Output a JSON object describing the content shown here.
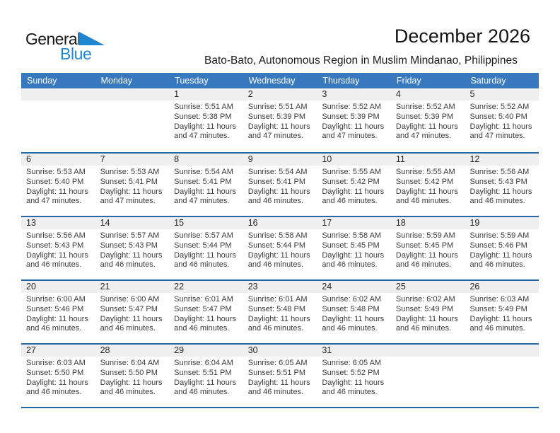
{
  "logo": {
    "part1": "General",
    "part2": "Blue",
    "triangle_color": "#1F86D1"
  },
  "header": {
    "title": "December 2026",
    "subtitle": "Bato-Bato, Autonomous Region in Muslim Mindanao, Philippines"
  },
  "colors": {
    "weekday_header_bg": "#3878BE",
    "week_separator": "#2667A8",
    "day_band_bg": "#EFEFEF"
  },
  "weekdays": [
    "Sunday",
    "Monday",
    "Tuesday",
    "Wednesday",
    "Thursday",
    "Friday",
    "Saturday"
  ],
  "weeks": [
    [
      {
        "day": "",
        "lines": []
      },
      {
        "day": "",
        "lines": []
      },
      {
        "day": "1",
        "lines": [
          "Sunrise: 5:51 AM",
          "Sunset: 5:38 PM",
          "Daylight: 11 hours",
          "and 47 minutes."
        ]
      },
      {
        "day": "2",
        "lines": [
          "Sunrise: 5:51 AM",
          "Sunset: 5:39 PM",
          "Daylight: 11 hours",
          "and 47 minutes."
        ]
      },
      {
        "day": "3",
        "lines": [
          "Sunrise: 5:52 AM",
          "Sunset: 5:39 PM",
          "Daylight: 11 hours",
          "and 47 minutes."
        ]
      },
      {
        "day": "4",
        "lines": [
          "Sunrise: 5:52 AM",
          "Sunset: 5:39 PM",
          "Daylight: 11 hours",
          "and 47 minutes."
        ]
      },
      {
        "day": "5",
        "lines": [
          "Sunrise: 5:52 AM",
          "Sunset: 5:40 PM",
          "Daylight: 11 hours",
          "and 47 minutes."
        ]
      }
    ],
    [
      {
        "day": "6",
        "lines": [
          "Sunrise: 5:53 AM",
          "Sunset: 5:40 PM",
          "Daylight: 11 hours",
          "and 47 minutes."
        ]
      },
      {
        "day": "7",
        "lines": [
          "Sunrise: 5:53 AM",
          "Sunset: 5:41 PM",
          "Daylight: 11 hours",
          "and 47 minutes."
        ]
      },
      {
        "day": "8",
        "lines": [
          "Sunrise: 5:54 AM",
          "Sunset: 5:41 PM",
          "Daylight: 11 hours",
          "and 47 minutes."
        ]
      },
      {
        "day": "9",
        "lines": [
          "Sunrise: 5:54 AM",
          "Sunset: 5:41 PM",
          "Daylight: 11 hours",
          "and 46 minutes."
        ]
      },
      {
        "day": "10",
        "lines": [
          "Sunrise: 5:55 AM",
          "Sunset: 5:42 PM",
          "Daylight: 11 hours",
          "and 46 minutes."
        ]
      },
      {
        "day": "11",
        "lines": [
          "Sunrise: 5:55 AM",
          "Sunset: 5:42 PM",
          "Daylight: 11 hours",
          "and 46 minutes."
        ]
      },
      {
        "day": "12",
        "lines": [
          "Sunrise: 5:56 AM",
          "Sunset: 5:43 PM",
          "Daylight: 11 hours",
          "and 46 minutes."
        ]
      }
    ],
    [
      {
        "day": "13",
        "lines": [
          "Sunrise: 5:56 AM",
          "Sunset: 5:43 PM",
          "Daylight: 11 hours",
          "and 46 minutes."
        ]
      },
      {
        "day": "14",
        "lines": [
          "Sunrise: 5:57 AM",
          "Sunset: 5:43 PM",
          "Daylight: 11 hours",
          "and 46 minutes."
        ]
      },
      {
        "day": "15",
        "lines": [
          "Sunrise: 5:57 AM",
          "Sunset: 5:44 PM",
          "Daylight: 11 hours",
          "and 46 minutes."
        ]
      },
      {
        "day": "16",
        "lines": [
          "Sunrise: 5:58 AM",
          "Sunset: 5:44 PM",
          "Daylight: 11 hours",
          "and 46 minutes."
        ]
      },
      {
        "day": "17",
        "lines": [
          "Sunrise: 5:58 AM",
          "Sunset: 5:45 PM",
          "Daylight: 11 hours",
          "and 46 minutes."
        ]
      },
      {
        "day": "18",
        "lines": [
          "Sunrise: 5:59 AM",
          "Sunset: 5:45 PM",
          "Daylight: 11 hours",
          "and 46 minutes."
        ]
      },
      {
        "day": "19",
        "lines": [
          "Sunrise: 5:59 AM",
          "Sunset: 5:46 PM",
          "Daylight: 11 hours",
          "and 46 minutes."
        ]
      }
    ],
    [
      {
        "day": "20",
        "lines": [
          "Sunrise: 6:00 AM",
          "Sunset: 5:46 PM",
          "Daylight: 11 hours",
          "and 46 minutes."
        ]
      },
      {
        "day": "21",
        "lines": [
          "Sunrise: 6:00 AM",
          "Sunset: 5:47 PM",
          "Daylight: 11 hours",
          "and 46 minutes."
        ]
      },
      {
        "day": "22",
        "lines": [
          "Sunrise: 6:01 AM",
          "Sunset: 5:47 PM",
          "Daylight: 11 hours",
          "and 46 minutes."
        ]
      },
      {
        "day": "23",
        "lines": [
          "Sunrise: 6:01 AM",
          "Sunset: 5:48 PM",
          "Daylight: 11 hours",
          "and 46 minutes."
        ]
      },
      {
        "day": "24",
        "lines": [
          "Sunrise: 6:02 AM",
          "Sunset: 5:48 PM",
          "Daylight: 11 hours",
          "and 46 minutes."
        ]
      },
      {
        "day": "25",
        "lines": [
          "Sunrise: 6:02 AM",
          "Sunset: 5:49 PM",
          "Daylight: 11 hours",
          "and 46 minutes."
        ]
      },
      {
        "day": "26",
        "lines": [
          "Sunrise: 6:03 AM",
          "Sunset: 5:49 PM",
          "Daylight: 11 hours",
          "and 46 minutes."
        ]
      }
    ],
    [
      {
        "day": "27",
        "lines": [
          "Sunrise: 6:03 AM",
          "Sunset: 5:50 PM",
          "Daylight: 11 hours",
          "and 46 minutes."
        ]
      },
      {
        "day": "28",
        "lines": [
          "Sunrise: 6:04 AM",
          "Sunset: 5:50 PM",
          "Daylight: 11 hours",
          "and 46 minutes."
        ]
      },
      {
        "day": "29",
        "lines": [
          "Sunrise: 6:04 AM",
          "Sunset: 5:51 PM",
          "Daylight: 11 hours",
          "and 46 minutes."
        ]
      },
      {
        "day": "30",
        "lines": [
          "Sunrise: 6:05 AM",
          "Sunset: 5:51 PM",
          "Daylight: 11 hours",
          "and 46 minutes."
        ]
      },
      {
        "day": "31",
        "lines": [
          "Sunrise: 6:05 AM",
          "Sunset: 5:52 PM",
          "Daylight: 11 hours",
          "and 46 minutes."
        ]
      },
      {
        "day": "",
        "lines": []
      },
      {
        "day": "",
        "lines": []
      }
    ]
  ]
}
